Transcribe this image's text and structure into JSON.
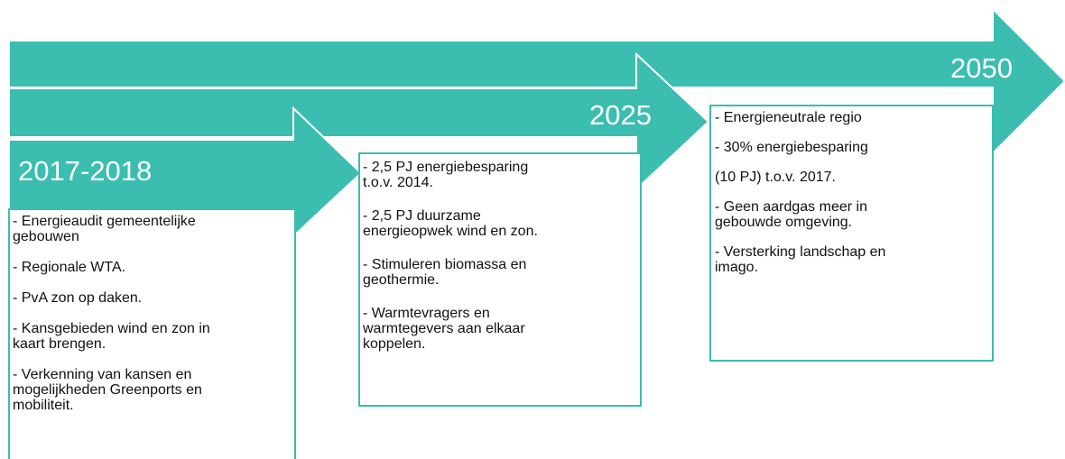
{
  "stages": [
    {
      "label": "2017-2018",
      "items": [
        [
          "- Energieaudit gemeentelijke",
          "gebouwen"
        ],
        [
          "- Regionale WTA."
        ],
        [
          "- PvA zon op daken."
        ],
        [
          "- Kansgebieden wind en zon in",
          "kaart brengen."
        ],
        [
          "- Verkenning van kansen en",
          "mogelijkheden Greenports en",
          "mobiliteit."
        ]
      ]
    },
    {
      "label": "2025",
      "items": [
        [
          "- 2,5 PJ energiebesparing",
          "t.o.v. 2014."
        ],
        [
          "- 2,5 PJ duurzame",
          "energieopwek wind en zon."
        ],
        [
          "- Stimuleren biomassa en",
          "geothermie."
        ],
        [
          "- Warmtevragers en",
          "warmtegevers aan elkaar",
          "koppelen."
        ]
      ]
    },
    {
      "label": "2050",
      "items": [
        [
          "- Energieneutrale regio"
        ],
        [
          "- 30% energiebesparing"
        ],
        [
          "(10 PJ) t.o.v. 2017."
        ],
        [
          "- Geen aardgas meer in",
          "gebouwde omgeving."
        ],
        [
          "- Versterking landschap en",
          "imago."
        ]
      ]
    }
  ]
}
